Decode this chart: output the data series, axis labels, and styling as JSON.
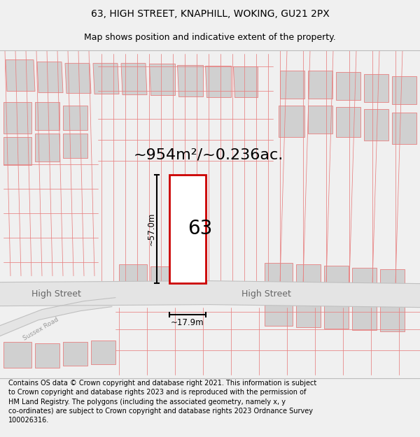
{
  "title": "63, HIGH STREET, KNAPHILL, WOKING, GU21 2PX",
  "subtitle": "Map shows position and indicative extent of the property.",
  "area_text": "~954m²/~0.236ac.",
  "width_label": "~17.9m",
  "height_label": "~57.0m",
  "property_number": "63",
  "street_label_left": "High Street",
  "street_label_right": "High Street",
  "street_label_diag": "Sussex Road",
  "footer_text_full": "Contains OS data © Crown copyright and database right 2021. This information is subject\nto Crown copyright and database rights 2023 and is reproduced with the permission of\nHM Land Registry. The polygons (including the associated geometry, namely x, y\nco-ordinates) are subject to Crown copyright and database rights 2023 Ordnance Survey\n100026316.",
  "bg_color": "#f0f0f0",
  "map_bg": "#f8f8f8",
  "building_fill": "#d0d0d0",
  "pink_line_color": "#e88080",
  "red_box_color": "#cc0000",
  "title_fontsize": 10,
  "subtitle_fontsize": 9,
  "footer_fontsize": 7.0
}
